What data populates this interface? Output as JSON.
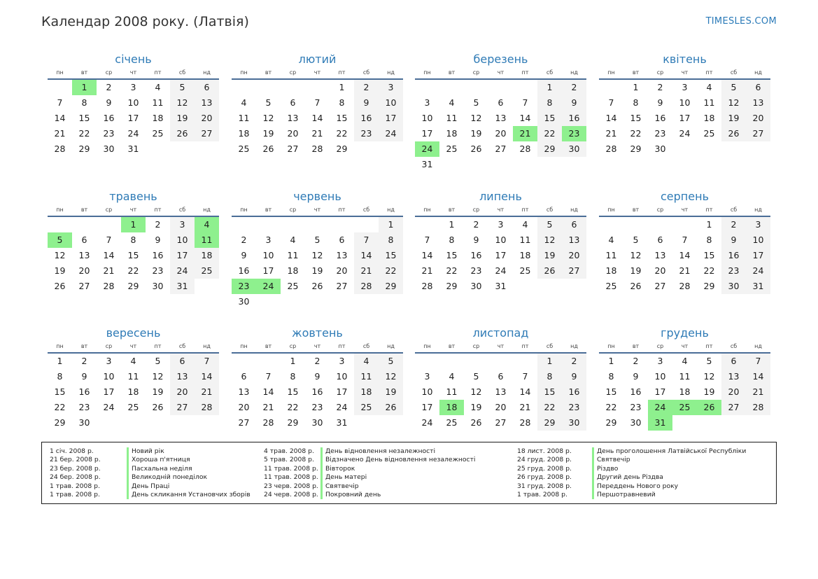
{
  "header": {
    "title": "Календар 2008 року. (Латвія)",
    "site": "TIMESLES.COM"
  },
  "calendar": {
    "weekdays": [
      "пн",
      "вт",
      "ср",
      "чт",
      "пт",
      "сб",
      "нд"
    ],
    "months": [
      {
        "name": "січень",
        "offset": 1,
        "days": 31,
        "holidays": [
          1
        ]
      },
      {
        "name": "лютий",
        "offset": 4,
        "days": 29,
        "holidays": []
      },
      {
        "name": "березень",
        "offset": 5,
        "days": 31,
        "holidays": [
          21,
          23,
          24
        ]
      },
      {
        "name": "квітень",
        "offset": 1,
        "days": 30,
        "holidays": []
      },
      {
        "name": "травень",
        "offset": 3,
        "days": 31,
        "holidays": [
          1,
          4,
          5,
          11
        ]
      },
      {
        "name": "червень",
        "offset": 6,
        "days": 30,
        "holidays": [
          23,
          24
        ]
      },
      {
        "name": "липень",
        "offset": 1,
        "days": 31,
        "holidays": []
      },
      {
        "name": "серпень",
        "offset": 4,
        "days": 31,
        "holidays": []
      },
      {
        "name": "вересень",
        "offset": 0,
        "days": 30,
        "holidays": []
      },
      {
        "name": "жовтень",
        "offset": 2,
        "days": 31,
        "holidays": []
      },
      {
        "name": "листопад",
        "offset": 5,
        "days": 30,
        "holidays": [
          18
        ]
      },
      {
        "name": "грудень",
        "offset": 0,
        "days": 31,
        "holidays": [
          24,
          25,
          26,
          31
        ]
      }
    ]
  },
  "holiday_list": {
    "columns": [
      [
        {
          "date": "1 січ. 2008 р.",
          "name": "Новий рік"
        },
        {
          "date": "21 бер. 2008 р.",
          "name": "Хороша п'ятниця"
        },
        {
          "date": "23 бер. 2008 р.",
          "name": "Пасхальна неділя"
        },
        {
          "date": "24 бер. 2008 р.",
          "name": "Великодній понеділок"
        },
        {
          "date": "1 трав. 2008 р.",
          "name": "День Праці"
        },
        {
          "date": "1 трав. 2008 р.",
          "name": "День скликання Установчих зборів"
        }
      ],
      [
        {
          "date": "4 трав. 2008 р.",
          "name": "День відновлення незалежності"
        },
        {
          "date": "5 трав. 2008 р.",
          "name": "Відзначено День відновлення незалежності"
        },
        {
          "date": "11 трав. 2008 р.",
          "name": "Вівторок"
        },
        {
          "date": "11 трав. 2008 р.",
          "name": "День матері"
        },
        {
          "date": "23 черв. 2008 р.",
          "name": "Святвечір"
        },
        {
          "date": "24 черв. 2008 р.",
          "name": "Покровний день"
        }
      ],
      [
        {
          "date": "18 лист. 2008 р.",
          "name": "День проголошення Латвійської Республіки"
        },
        {
          "date": "24 груд. 2008 р.",
          "name": "Святвечір"
        },
        {
          "date": "25 груд. 2008 р.",
          "name": "Різдво"
        },
        {
          "date": "26 груд. 2008 р.",
          "name": "Другий день Різдва"
        },
        {
          "date": "31 груд. 2008 р.",
          "name": "Переддень Нового року"
        },
        {
          "date": "1 трав. 2008 р.",
          "name": "Першотравневий"
        }
      ]
    ]
  }
}
